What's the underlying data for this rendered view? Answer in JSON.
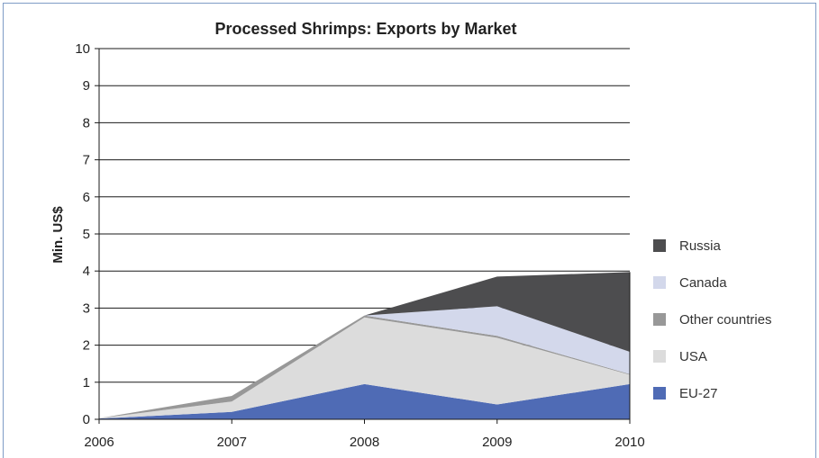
{
  "chart_data": {
    "type": "area",
    "stacked": true,
    "title": "Processed Shrimps: Exports by Market",
    "xlabel": "",
    "ylabel": "Min. US$",
    "x": [
      "2006",
      "2007",
      "2008",
      "2009",
      "2010"
    ],
    "ylim": [
      0,
      10
    ],
    "yticks": [
      0,
      1,
      2,
      3,
      4,
      5,
      6,
      7,
      8,
      9,
      10
    ],
    "grid": true,
    "legend_position": "right",
    "series": [
      {
        "name": "EU-27",
        "color": "#4f6bb5",
        "values": [
          0.02,
          0.2,
          0.95,
          0.4,
          0.95
        ]
      },
      {
        "name": "USA",
        "color": "#dcdcdc",
        "values": [
          0.01,
          0.28,
          1.8,
          1.8,
          0.25
        ]
      },
      {
        "name": "Other countries",
        "color": "#989898",
        "values": [
          0.0,
          0.15,
          0.05,
          0.05,
          0.02
        ]
      },
      {
        "name": "Canada",
        "color": "#d3d8eb",
        "values": [
          0.0,
          0.0,
          0.0,
          0.8,
          0.6
        ]
      },
      {
        "name": "Russia",
        "color": "#4d4d4f",
        "values": [
          0.0,
          0.0,
          0.0,
          0.8,
          2.15
        ]
      }
    ]
  }
}
